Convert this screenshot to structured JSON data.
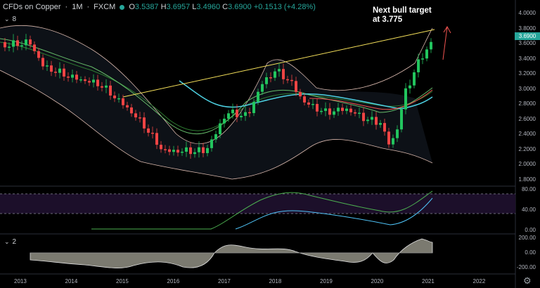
{
  "header": {
    "symbol": "CFDs on Copper",
    "interval": "1M",
    "exchange": "FXCM",
    "open": "3.5387",
    "high": "3.6957",
    "low": "3.4960",
    "close": "3.6900",
    "change": "+0.1513 (+4.28%)"
  },
  "annotation": {
    "line1": "Next bull target",
    "line2": "at 3.775"
  },
  "price_badge": "3.6900",
  "pane_labels": {
    "main": "8",
    "rsi": "3",
    "macd": "2"
  },
  "price_axis": [
    "4.0000",
    "3.8000",
    "3.6000",
    "3.4000",
    "3.2000",
    "3.0000",
    "2.8000",
    "2.6000",
    "2.4000",
    "2.2000",
    "2.0000",
    "1.8000"
  ],
  "rsi_axis": [
    "80.00",
    "40.00",
    "0.00"
  ],
  "macd_axis": [
    "200.00",
    "0.00",
    "-200.00"
  ],
  "time_axis": [
    "2013",
    "2014",
    "2015",
    "2016",
    "2017",
    "2018",
    "2019",
    "2020",
    "2021",
    "2022"
  ],
  "colors": {
    "up": "#26a69a",
    "up_candle": "#22c55e",
    "down": "#ef4444",
    "trendline": "#f5e05a",
    "arrow": "#ef5350"
  },
  "icons": {
    "gear": "gear-icon",
    "chevron": "chevron-down-icon"
  }
}
